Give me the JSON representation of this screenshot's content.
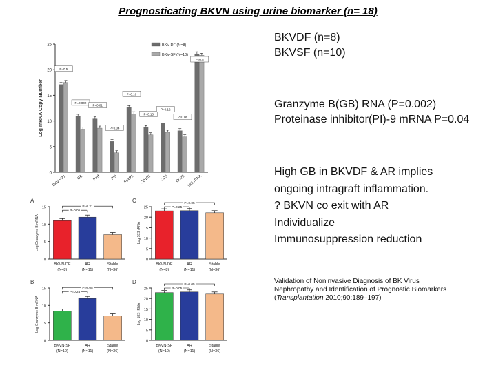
{
  "slide": {
    "title": "Prognosticating BKVN using urine biomarker (n= 18)"
  },
  "right_text": {
    "groups": [
      "BKVDF (n=8)",
      "BKVSF (n=10)"
    ],
    "stats": [
      "Granzyme B(GB) RNA (P=0.002)",
      "Proteinase inhibitor(PI)-9 mRNA P=0.04"
    ],
    "implications": [
      "High GB in BKVDF & AR implies",
      "ongoing intragraft inflammation.",
      "? BKVN co exit with AR",
      "Individualize",
      "Immunosuppression reduction"
    ],
    "citation": {
      "line1": "Validation of Noninvasive Diagnosis of BK Virus",
      "line2": "Nephropathy and Identification of Prognostic Biomarkers",
      "journal": "Transplantation",
      "ref": " 2010;90:189–197)",
      "open_paren": "("
    }
  },
  "chart_data": [
    {
      "type": "bar",
      "panel": "main",
      "ylabel": "Log mRNA Copy Number",
      "ylim": [
        0,
        25
      ],
      "yticks": [
        "0",
        "5",
        "10",
        "15",
        "20",
        "25"
      ],
      "categories": [
        "BKV VP1",
        "GB",
        "Perf",
        "PI9",
        "FoxP3",
        "CD103",
        "CD3",
        "CD25",
        "18S rRNA"
      ],
      "series": [
        {
          "name": "BKV-DF (N=8)",
          "color": "#6d6d6d",
          "values": [
            17.1,
            10.9,
            10.4,
            6.0,
            12.6,
            8.7,
            9.6,
            8.1,
            23.1
          ]
        },
        {
          "name": "BKV-SF (N=10)",
          "color": "#a9a9a9",
          "values": [
            17.5,
            8.4,
            8.6,
            3.8,
            11.4,
            7.3,
            7.8,
            6.9,
            22.8
          ]
        }
      ],
      "annotations": [
        "P=0.5",
        "P=0.002",
        "P<0.01",
        "P=0.04",
        "P=0.16",
        "P=0.13",
        "P=0.12",
        "P=0.08",
        "P=0.5"
      ]
    },
    {
      "type": "bar",
      "panel": "A",
      "ylabel": "Log Granzyme B mRNA",
      "ylim": [
        0,
        15
      ],
      "yticks": [
        "0",
        "5",
        "10",
        "15"
      ],
      "categories": [
        "BKVN-DF",
        "AR",
        "Stable"
      ],
      "ns": [
        "(N=8)",
        "(N=11)",
        "(N=36)"
      ],
      "colors": [
        "#e8222b",
        "#283d9b",
        "#f4b98a"
      ],
      "values": [
        11.0,
        12.0,
        7.0
      ],
      "annotations": [
        "P=0.21",
        "P=0.05"
      ]
    },
    {
      "type": "bar",
      "panel": "C",
      "ylabel": "Log 18S rRNA",
      "ylim": [
        0,
        25
      ],
      "yticks": [
        "0",
        "5",
        "10",
        "15",
        "20",
        "25"
      ],
      "categories": [
        "BKVN-DF",
        "AR",
        "Stable"
      ],
      "ns": [
        "(N=8)",
        "(N=11)",
        "(N=36)"
      ],
      "colors": [
        "#e8222b",
        "#283d9b",
        "#f4b98a"
      ],
      "values": [
        23.0,
        23.1,
        22.1
      ],
      "annotations": [
        "P=0.05",
        "P=0.25"
      ]
    },
    {
      "type": "bar",
      "panel": "B",
      "ylabel": "Log Granzyme B mRNA",
      "ylim": [
        0,
        15
      ],
      "yticks": [
        "0",
        "5",
        "10",
        "15"
      ],
      "categories": [
        "BKVN-SF",
        "AR",
        "Stable"
      ],
      "ns": [
        "(N=10)",
        "(N=11)",
        "(N=36)"
      ],
      "colors": [
        "#2fb24a",
        "#283d9b",
        "#f4b98a"
      ],
      "values": [
        8.4,
        12.0,
        7.0
      ],
      "annotations": [
        "P=0.05",
        "P=0.25"
      ]
    },
    {
      "type": "bar",
      "panel": "D",
      "ylabel": "Log 18S rRNA",
      "ylim": [
        0,
        25
      ],
      "yticks": [
        "0",
        "5",
        "10",
        "15",
        "20",
        "25"
      ],
      "categories": [
        "BKVN-SF",
        "AR",
        "Stable"
      ],
      "ns": [
        "(N=10)",
        "(N=11)",
        "(N=36)"
      ],
      "colors": [
        "#2fb24a",
        "#283d9b",
        "#f4b98a"
      ],
      "values": [
        22.8,
        23.1,
        22.1
      ],
      "annotations": [
        "P=0.05",
        "P=0.05"
      ]
    }
  ]
}
